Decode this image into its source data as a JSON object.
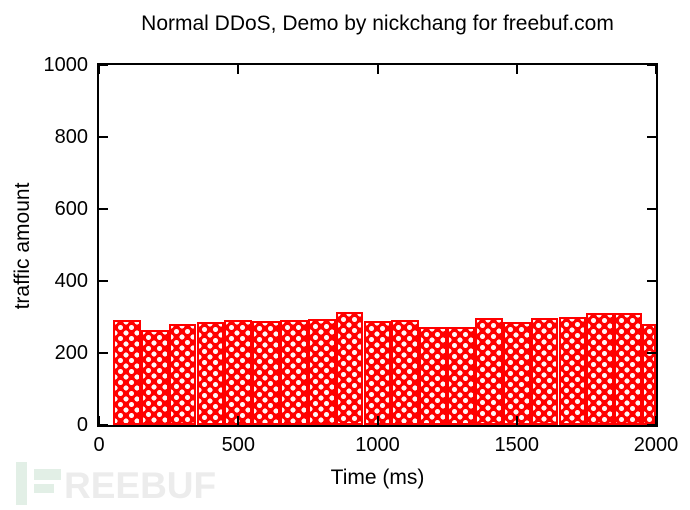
{
  "title": "Normal DDoS, Demo by nickchang for freebuf.com",
  "watermark": {
    "brand_text": "REEBUF",
    "brand_full": "FREEBUF",
    "logo_color": "#e2efe6",
    "text_color": "#ececec"
  },
  "chart_data": {
    "type": "bar",
    "title": "Normal DDoS, Demo by nickchang for freebuf.com",
    "xlabel": "Time (ms)",
    "ylabel": "traffic amount",
    "xlim": [
      0,
      2000
    ],
    "ylim": [
      0,
      1000
    ],
    "x_ticks": [
      0,
      500,
      1000,
      1500,
      2000
    ],
    "y_ticks": [
      0,
      200,
      400,
      600,
      800,
      1000
    ],
    "grid": false,
    "legend": "none",
    "bar_color": "#ff0000",
    "bar_fill_pattern": "white-dot-crosshatch",
    "bin_width": 100,
    "categories": [
      100,
      200,
      300,
      400,
      500,
      600,
      700,
      800,
      900,
      1000,
      1100,
      1200,
      1300,
      1400,
      1500,
      1600,
      1700,
      1800,
      1900,
      2000
    ],
    "values": [
      292,
      265,
      280,
      286,
      292,
      289,
      292,
      294,
      314,
      289,
      293,
      272,
      271,
      297,
      285,
      298,
      300,
      310,
      312,
      281
    ]
  }
}
